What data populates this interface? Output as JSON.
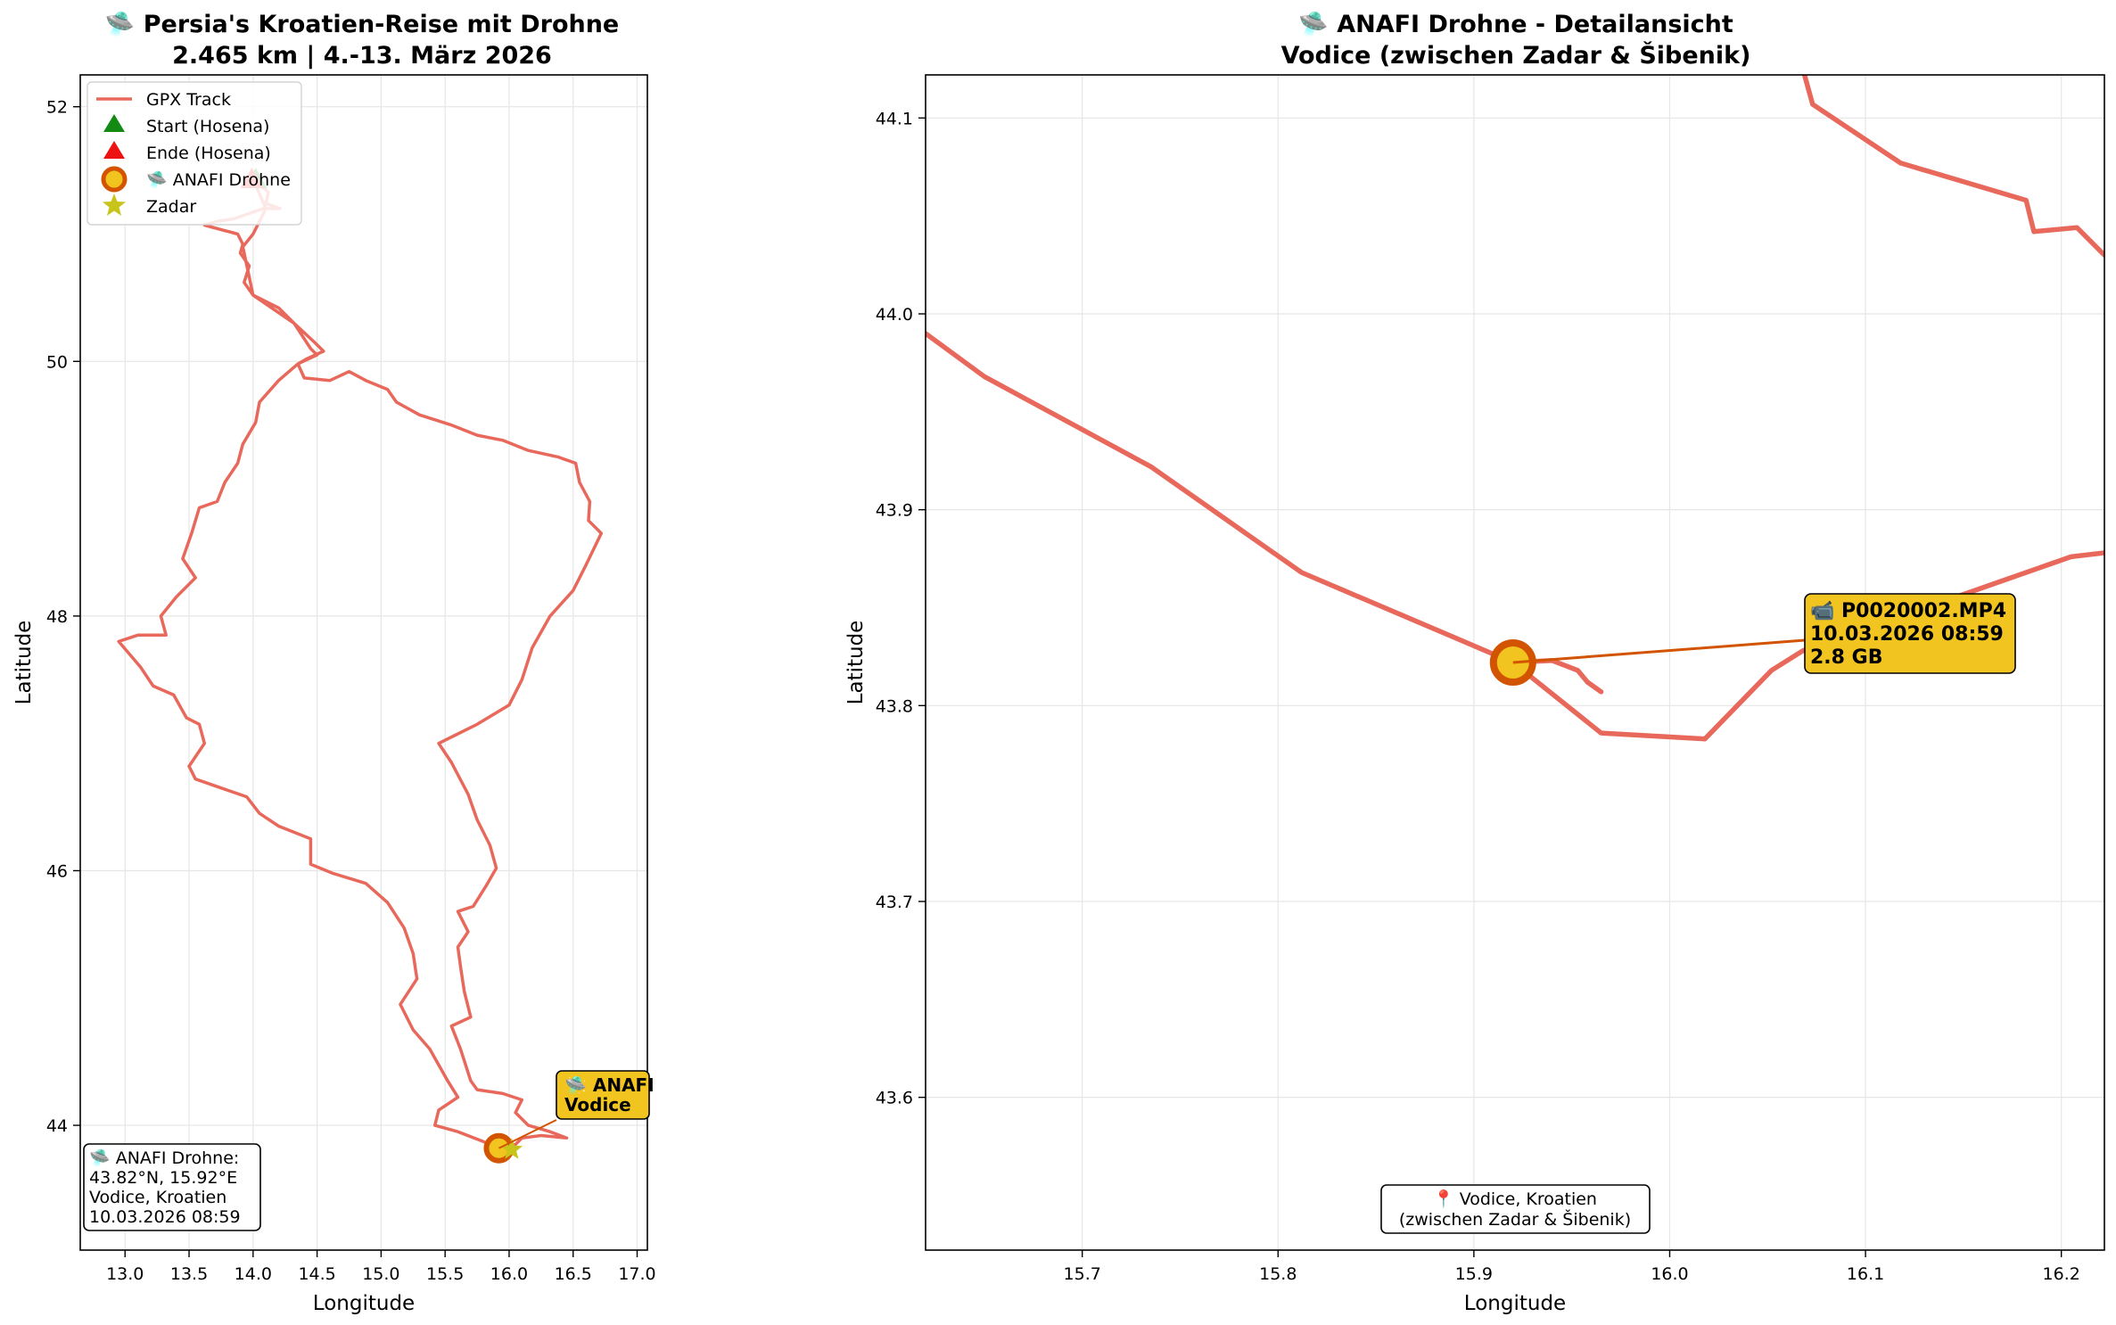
{
  "chart_data": [
    {
      "type": "line",
      "title": "🛸 Persia's Kroatien-Reise mit Drohne",
      "subtitle": "2.465 km | 4.-13. März 2026",
      "xlabel": "Longitude",
      "ylabel": "Latitude",
      "xlim": [
        12.65,
        17.08
      ],
      "ylim": [
        43.02,
        52.25
      ],
      "xticks": [
        13.0,
        13.5,
        14.0,
        14.5,
        15.0,
        15.5,
        16.0,
        16.5,
        17.0
      ],
      "xtick_labels": [
        "13.0",
        "13.5",
        "14.0",
        "14.5",
        "15.0",
        "15.5",
        "16.0",
        "16.5",
        "17.0"
      ],
      "yticks": [
        44,
        46,
        48,
        50,
        52
      ],
      "ytick_labels": [
        "44",
        "46",
        "48",
        "50",
        "52"
      ],
      "grid": true,
      "legend_position": "top-left",
      "legend": [
        {
          "label": "GPX Track",
          "marker": "line",
          "color": "#e8695c"
        },
        {
          "label": "Start (Hosena)",
          "marker": "triangle",
          "color": "#138a13"
        },
        {
          "label": "Ende (Hosena)",
          "marker": "triangle",
          "color": "#ee1111"
        },
        {
          "label": "🛸 ANAFI Drohne",
          "marker": "circle",
          "color": "#f2c41f",
          "edge": "#d35400"
        },
        {
          "label": "Zadar",
          "marker": "star",
          "color": "#c8c41a"
        }
      ],
      "series": [
        {
          "name": "GPX Track",
          "color": "#e8695c",
          "points": [
            [
              14.0,
              51.43
            ],
            [
              14.12,
              51.33
            ],
            [
              14.1,
              51.24
            ],
            [
              14.21,
              51.2
            ],
            [
              14.08,
              51.2
            ],
            [
              13.85,
              51.12
            ],
            [
              13.72,
              51.1
            ],
            [
              13.62,
              51.07
            ],
            [
              13.88,
              51.0
            ],
            [
              13.92,
              50.92
            ],
            [
              13.9,
              50.85
            ],
            [
              13.97,
              50.75
            ],
            [
              13.93,
              50.62
            ],
            [
              14.0,
              50.52
            ],
            [
              14.2,
              50.42
            ],
            [
              14.32,
              50.3
            ],
            [
              14.48,
              50.15
            ],
            [
              14.55,
              50.08
            ],
            [
              14.42,
              50.02
            ],
            [
              14.35,
              49.98
            ],
            [
              14.4,
              49.87
            ],
            [
              14.6,
              49.85
            ],
            [
              14.75,
              49.92
            ],
            [
              14.88,
              49.85
            ],
            [
              15.05,
              49.78
            ],
            [
              15.12,
              49.68
            ],
            [
              15.3,
              49.58
            ],
            [
              15.55,
              49.5
            ],
            [
              15.75,
              49.42
            ],
            [
              15.95,
              49.38
            ],
            [
              16.15,
              49.3
            ],
            [
              16.38,
              49.25
            ],
            [
              16.52,
              49.2
            ],
            [
              16.55,
              49.05
            ],
            [
              16.63,
              48.9
            ],
            [
              16.62,
              48.75
            ],
            [
              16.72,
              48.65
            ],
            [
              16.6,
              48.4
            ],
            [
              16.5,
              48.2
            ],
            [
              16.32,
              48.0
            ],
            [
              16.18,
              47.75
            ],
            [
              16.1,
              47.5
            ],
            [
              16.0,
              47.3
            ],
            [
              15.75,
              47.15
            ],
            [
              15.45,
              47.0
            ],
            [
              15.55,
              46.85
            ],
            [
              15.68,
              46.6
            ],
            [
              15.75,
              46.4
            ],
            [
              15.85,
              46.2
            ],
            [
              15.9,
              46.02
            ],
            [
              15.82,
              45.88
            ],
            [
              15.72,
              45.72
            ],
            [
              15.6,
              45.68
            ],
            [
              15.68,
              45.52
            ],
            [
              15.6,
              45.4
            ],
            [
              15.62,
              45.25
            ],
            [
              15.65,
              45.05
            ],
            [
              15.7,
              44.85
            ],
            [
              15.55,
              44.78
            ],
            [
              15.62,
              44.6
            ],
            [
              15.7,
              44.35
            ],
            [
              15.75,
              44.28
            ],
            [
              15.95,
              44.25
            ],
            [
              16.1,
              44.2
            ],
            [
              16.05,
              44.1
            ],
            [
              16.15,
              44.0
            ],
            [
              16.32,
              43.95
            ],
            [
              16.45,
              43.9
            ],
            [
              16.25,
              43.92
            ],
            [
              16.1,
              43.9
            ],
            [
              16.05,
              43.85
            ],
            [
              15.92,
              43.82
            ],
            [
              15.78,
              43.88
            ],
            [
              15.6,
              43.95
            ],
            [
              15.42,
              44.0
            ],
            [
              15.45,
              44.12
            ],
            [
              15.6,
              44.22
            ],
            [
              15.52,
              44.35
            ],
            [
              15.38,
              44.6
            ],
            [
              15.25,
              44.75
            ],
            [
              15.15,
              44.95
            ],
            [
              15.28,
              45.15
            ],
            [
              15.25,
              45.35
            ],
            [
              15.18,
              45.55
            ],
            [
              15.05,
              45.75
            ],
            [
              14.88,
              45.9
            ],
            [
              14.62,
              45.98
            ],
            [
              14.45,
              46.05
            ],
            [
              14.45,
              46.25
            ],
            [
              14.2,
              46.35
            ],
            [
              14.05,
              46.45
            ],
            [
              13.95,
              46.58
            ],
            [
              13.75,
              46.65
            ],
            [
              13.55,
              46.72
            ],
            [
              13.5,
              46.82
            ],
            [
              13.62,
              47.0
            ],
            [
              13.58,
              47.15
            ],
            [
              13.48,
              47.2
            ],
            [
              13.38,
              47.38
            ],
            [
              13.22,
              47.45
            ],
            [
              13.12,
              47.6
            ],
            [
              12.95,
              47.8
            ],
            [
              13.1,
              47.85
            ],
            [
              13.32,
              47.85
            ],
            [
              13.28,
              48.0
            ],
            [
              13.4,
              48.15
            ],
            [
              13.55,
              48.3
            ],
            [
              13.45,
              48.45
            ],
            [
              13.52,
              48.65
            ],
            [
              13.58,
              48.85
            ],
            [
              13.72,
              48.9
            ],
            [
              13.78,
              49.05
            ],
            [
              13.88,
              49.2
            ],
            [
              13.92,
              49.35
            ],
            [
              14.02,
              49.52
            ],
            [
              14.05,
              49.68
            ],
            [
              14.2,
              49.85
            ],
            [
              14.35,
              49.98
            ],
            [
              14.5,
              50.05
            ],
            [
              14.45,
              50.1
            ],
            [
              14.32,
              50.3
            ],
            [
              14.0,
              50.52
            ],
            [
              13.92,
              50.9
            ],
            [
              14.0,
              51.0
            ],
            [
              14.1,
              51.2
            ],
            [
              14.0,
              51.43
            ]
          ]
        }
      ],
      "markers": [
        {
          "name": "Start (Hosena)",
          "x": 14.02,
          "y": 51.43,
          "marker": "triangle",
          "color": "#138a13"
        },
        {
          "name": "Ende (Hosena)",
          "x": 13.99,
          "y": 51.43,
          "marker": "triangle",
          "color": "#ee1111"
        },
        {
          "name": "ANAFI Drohne",
          "x": 15.92,
          "y": 43.82,
          "marker": "circle",
          "color": "#f2c41f"
        },
        {
          "name": "Zadar",
          "x": 16.02,
          "y": 43.81,
          "marker": "star",
          "color": "#c8c41a"
        }
      ],
      "annotation": {
        "lines": [
          "🛸 ANAFI",
          "Vodice"
        ],
        "x": 16.35,
        "y": 44.25,
        "target_x": 15.92,
        "target_y": 43.82
      },
      "info_box": [
        "🛸 ANAFI Drohne:",
        "43.82°N, 15.92°E",
        "Vodice, Kroatien",
        "10.03.2026 08:59"
      ]
    },
    {
      "type": "line",
      "title": "🛸 ANAFI Drohne - Detailansicht",
      "subtitle": "Vodice (zwischen Zadar & Šibenik)",
      "xlabel": "Longitude",
      "ylabel": "Latitude",
      "xlim": [
        15.62,
        16.222
      ],
      "ylim": [
        43.522,
        44.122
      ],
      "xticks": [
        15.7,
        15.8,
        15.9,
        16.0,
        16.1,
        16.2
      ],
      "xtick_labels": [
        "15.7",
        "15.8",
        "15.9",
        "16.0",
        "16.1",
        "16.2"
      ],
      "yticks": [
        43.6,
        43.7,
        43.8,
        43.9,
        44.0,
        44.1
      ],
      "ytick_labels": [
        "43.6",
        "43.7",
        "43.8",
        "43.9",
        "44.0",
        "44.1"
      ],
      "grid": true,
      "series": [
        {
          "name": "GPX Track",
          "color": "#e8695c",
          "points": [
            [
              15.62,
              43.99
            ],
            [
              15.65,
              43.968
            ],
            [
              15.735,
              43.922
            ],
            [
              15.812,
              43.868
            ],
            [
              15.92,
              43.822
            ],
            [
              15.965,
              43.786
            ],
            [
              16.018,
              43.783
            ],
            [
              16.052,
              43.818
            ],
            [
              16.068,
              43.828
            ],
            [
              16.165,
              43.862
            ],
            [
              16.205,
              43.876
            ],
            [
              16.222,
              43.878
            ]
          ]
        },
        {
          "name": "GPX Track (north)",
          "color": "#e8695c",
          "points": [
            [
              16.068,
              44.125
            ],
            [
              16.073,
              44.107
            ],
            [
              16.118,
              44.077
            ],
            [
              16.182,
              44.058
            ],
            [
              16.186,
              44.042
            ],
            [
              16.208,
              44.044
            ],
            [
              16.222,
              44.03
            ]
          ]
        },
        {
          "name": "GPX Track (loop)",
          "color": "#e8695c",
          "points": [
            [
              15.92,
              43.822
            ],
            [
              15.94,
              43.823
            ],
            [
              15.953,
              43.818
            ],
            [
              15.958,
              43.812
            ],
            [
              15.965,
              43.807
            ]
          ]
        }
      ],
      "markers": [
        {
          "name": "ANAFI Drohne",
          "x": 15.92,
          "y": 43.822,
          "marker": "circle",
          "color": "#f2c41f"
        }
      ],
      "annotation": {
        "lines": [
          "📹 P0020002.MP4",
          "10.03.2026 08:59",
          "2.8 GB"
        ],
        "x": 16.072,
        "y": 43.838,
        "target_x": 15.92,
        "target_y": 43.822
      },
      "info_box": [
        "📍 Vodice, Kroatien",
        "(zwischen Zadar & Šibenik)"
      ]
    }
  ]
}
